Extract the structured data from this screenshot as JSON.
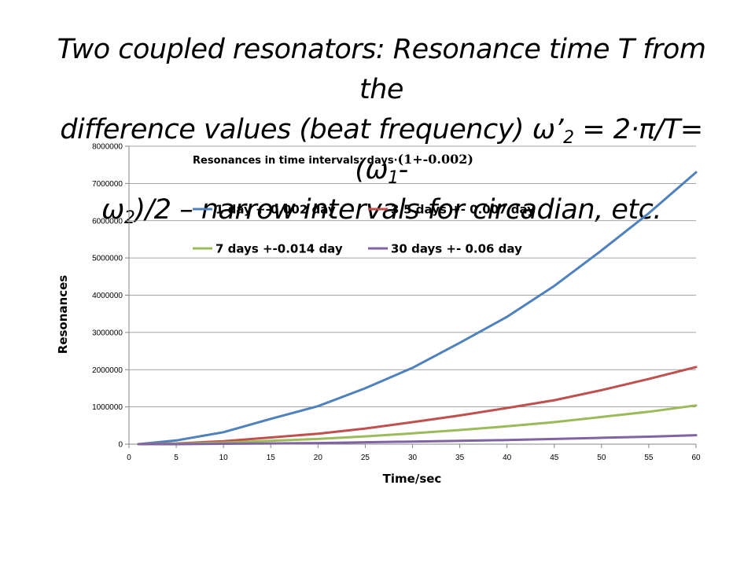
{
  "slide": {
    "title_parts": {
      "line1": "Two coupled resonators: Resonance time T from the",
      "line2a": "difference values (beat frequency) ω’",
      "line2_sub1": "2",
      "line2b": " = 2·π/T= (ω",
      "line2_sub2": "1",
      "line2c": "-",
      "line3a": "ω",
      "line3_sub": "2",
      "line3b": ")/2 – narrow intervals for circadian, etc."
    }
  },
  "chart_data": {
    "type": "line",
    "title": "Resonances in time intervals: days·",
    "title_suffix": "(1+-0.002)",
    "xlabel": "Time/sec",
    "ylabel": "Resonances",
    "xlim": [
      0,
      60
    ],
    "ylim": [
      0,
      8000000
    ],
    "x_ticks": [
      0,
      5,
      10,
      15,
      20,
      25,
      30,
      35,
      40,
      45,
      50,
      55,
      60
    ],
    "y_ticks": [
      0,
      1000000,
      2000000,
      3000000,
      4000000,
      5000000,
      6000000,
      7000000,
      8000000
    ],
    "x_tick_labels": [
      "0",
      "5",
      "10",
      "15",
      "20",
      "25",
      "30",
      "35",
      "40",
      "45",
      "50",
      "55",
      "60"
    ],
    "y_tick_labels": [
      "0",
      "1000000",
      "2000000",
      "3000000",
      "4000000",
      "5000000",
      "6000000",
      "7000000",
      "8000000"
    ],
    "legend_position": "top-inside",
    "grid": "horizontal",
    "x": [
      1,
      5,
      10,
      15,
      20,
      25,
      30,
      35,
      40,
      45,
      50,
      55,
      60
    ],
    "series": [
      {
        "name": "1 day +-0.002 day",
        "color": "#4f81bd",
        "values": [
          0,
          100000,
          320000,
          680000,
          1020000,
          1500000,
          2050000,
          2720000,
          3420000,
          4250000,
          5200000,
          6200000,
          7300000
        ]
      },
      {
        "name": "3.5 days +- 0.007 day",
        "color": "#c0504d",
        "values": [
          0,
          20000,
          80000,
          180000,
          280000,
          420000,
          590000,
          770000,
          970000,
          1180000,
          1450000,
          1750000,
          2070000
        ]
      },
      {
        "name": "7 days +-0.014 day",
        "color": "#9bbb59",
        "values": [
          0,
          10000,
          40000,
          90000,
          140000,
          210000,
          290000,
          380000,
          480000,
          590000,
          730000,
          870000,
          1040000
        ]
      },
      {
        "name": "30 days +- 0.06 day",
        "color": "#8064a2",
        "values": [
          0,
          0,
          10000,
          20000,
          30000,
          50000,
          70000,
          90000,
          110000,
          140000,
          170000,
          200000,
          240000
        ]
      }
    ]
  }
}
